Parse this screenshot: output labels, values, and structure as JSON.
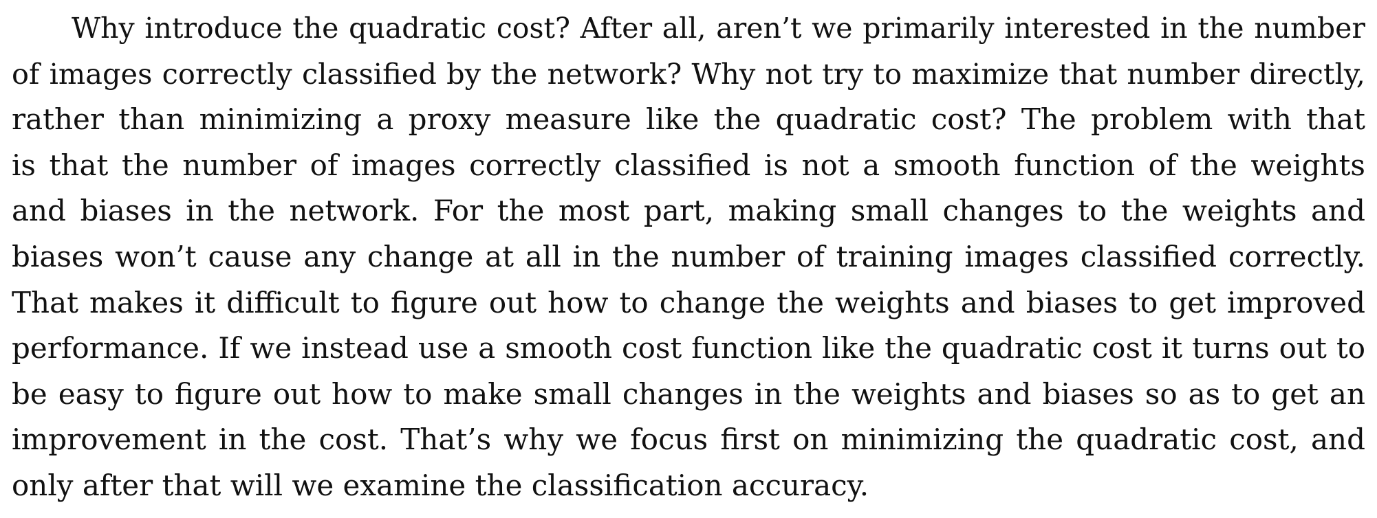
{
  "paragraph": {
    "lines": [
      "Why introduce the quadratic cost? After all, aren’t we primarily interested in the number",
      "of images correctly classified by the network? Why not try to maximize that number directly,",
      "rather than minimizing a proxy measure like the quadratic cost? The problem with that",
      "is that the number of images correctly classified is not a smooth function of the weights",
      "and biases in the network. For the most part, making small changes to the weights and",
      "biases won’t cause any change at all in the number of training images classified correctly.",
      "That makes it difficult to figure out how to change the weights and biases to get improved",
      "performance. If we instead use a smooth cost function like the quadratic cost it turns out to",
      "be easy to figure out how to make small changes in the weights and biases so as to get an",
      "improvement in the cost. That’s why we focus first on minimizing the quadratic cost, and",
      "only after that will we examine the classification accuracy."
    ]
  }
}
